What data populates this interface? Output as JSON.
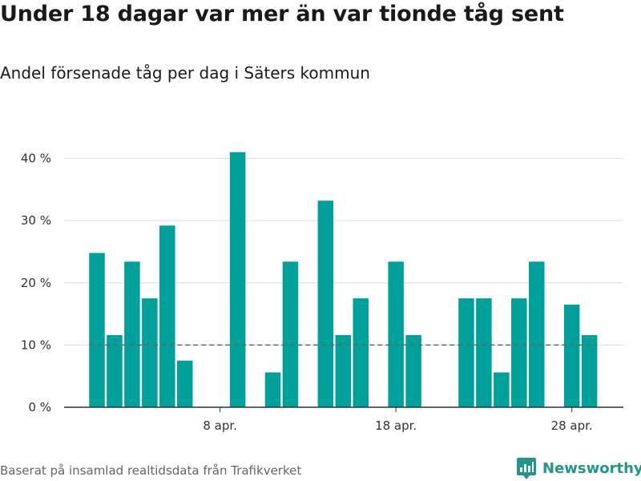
{
  "title": "Under 18 dagar var mer än var tionde tåg sent",
  "subtitle": "Andel försenade tåg per dag i Säters kommun",
  "source": "Baserat på insamlad realtidsdata från Trafikverket",
  "brand": {
    "name": "Newsworthy",
    "icon": "newsworthy-logo-icon"
  },
  "colors": {
    "bar": "#00a19a",
    "reference_line": "#666666",
    "grid": "#dddddd",
    "brand": "#23968a"
  },
  "chart_data": {
    "type": "bar",
    "x_unit": "day of April",
    "x": [
      1,
      2,
      3,
      4,
      5,
      6,
      7,
      8,
      9,
      10,
      11,
      12,
      13,
      14,
      15,
      16,
      17,
      18,
      19,
      20,
      21,
      22,
      23,
      24,
      25,
      26,
      27,
      28,
      29,
      30
    ],
    "values": [
      24.8,
      11.6,
      23.4,
      17.5,
      29.2,
      7.5,
      0,
      0,
      41,
      0,
      5.6,
      23.4,
      0,
      33.2,
      11.6,
      17.5,
      0,
      23.4,
      11.6,
      0,
      0,
      17.5,
      17.5,
      5.6,
      17.5,
      23.4,
      0,
      16.5,
      11.6,
      0
    ],
    "y_unit": "%",
    "ylim": [
      0,
      42
    ],
    "yticks": [
      0,
      10,
      20,
      30,
      40
    ],
    "ytick_labels": [
      "0 %",
      "10 %",
      "20 %",
      "30 %",
      "40 %"
    ],
    "xtick_positions": [
      8,
      18,
      28
    ],
    "xtick_labels": [
      "8 apr.",
      "18 apr.",
      "28 apr."
    ],
    "reference_line": {
      "value": 10,
      "style": "dashed"
    },
    "grid": true,
    "legend": false
  }
}
